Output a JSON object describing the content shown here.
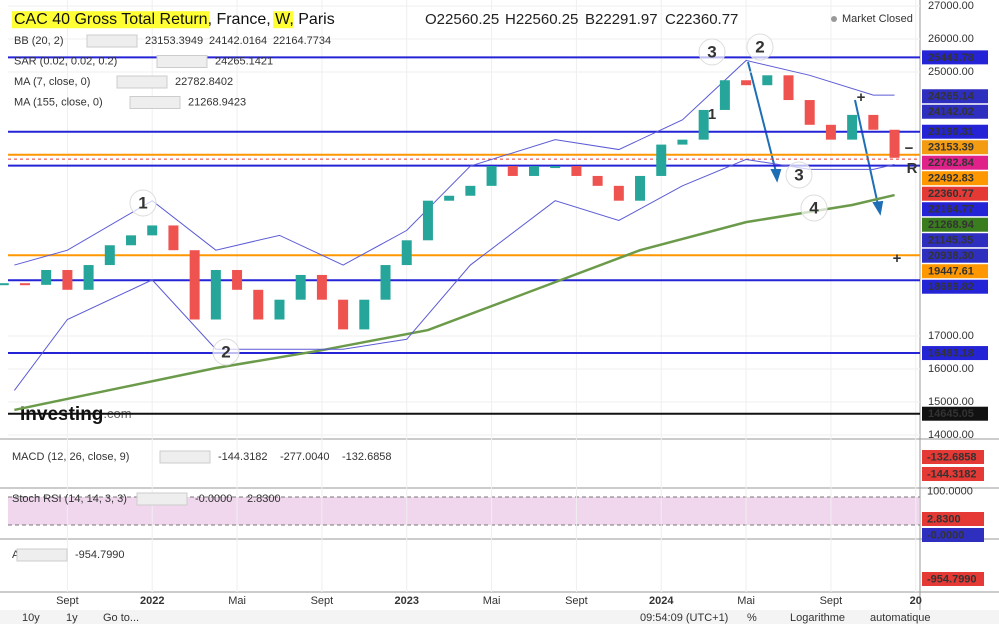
{
  "header": {
    "title_parts": [
      "CAC 40 Gross Total Return",
      ", France, ",
      "W",
      ", Paris"
    ],
    "ohlc": [
      "O22560.25",
      "H22560.25",
      "B22291.97",
      "C22360.77"
    ],
    "status": "Market Closed"
  },
  "indicators": [
    {
      "name": "BB (20, 2)",
      "values": [
        {
          "text": "23153.3949",
          "color": "#f39c12"
        },
        {
          "text": "24142.0164",
          "color": "#2f2fbf"
        },
        {
          "text": "22164.7734",
          "color": "#2f2fbf"
        }
      ]
    },
    {
      "name": "SAR (0.02, 0.02, 0.2)",
      "values": [
        {
          "text": "24265.1421",
          "color": "#2f2fbf"
        }
      ]
    },
    {
      "name": "MA (7, close, 0)",
      "values": [
        {
          "text": "22782.8402",
          "color": "#e0218a"
        }
      ]
    },
    {
      "name": "MA (155, close, 0)",
      "values": [
        {
          "text": "21268.9423",
          "color": "#3a7d1e"
        }
      ]
    }
  ],
  "chart_data": {
    "type": "candlestick",
    "xlim": [
      0.2,
      43.2
    ],
    "ylim": [
      14000,
      27000
    ],
    "xticks": [
      {
        "value": 3,
        "label": "Sept"
      },
      {
        "value": 7,
        "label": "2022"
      },
      {
        "value": 11,
        "label": "Mai"
      },
      {
        "value": 15,
        "label": "Sept"
      },
      {
        "value": 19,
        "label": "2023"
      },
      {
        "value": 23,
        "label": "Mai"
      },
      {
        "value": 27,
        "label": "Sept"
      },
      {
        "value": 31,
        "label": "2024"
      },
      {
        "value": 35,
        "label": "Mai"
      },
      {
        "value": 39,
        "label": "Sept"
      },
      {
        "value": 43,
        "label": "20"
      }
    ],
    "yticks": [
      {
        "value": 27000,
        "label": "27000.00"
      },
      {
        "value": 26000,
        "label": "26000.00"
      },
      {
        "value": 25000,
        "label": "25000.00"
      },
      {
        "value": 17000,
        "label": "17000.00"
      },
      {
        "value": 16000,
        "label": "16000.00"
      },
      {
        "value": 15000,
        "label": "15000.00"
      },
      {
        "value": 14000,
        "label": "14000.00"
      }
    ],
    "up_color": "#26a69a",
    "down_color": "#ef5350",
    "values": [
      18600,
      18550,
      19000,
      18400,
      19150,
      19750,
      20050,
      20350,
      19600,
      17500,
      19000,
      18400,
      17500,
      18100,
      18850,
      18100,
      17200,
      18100,
      19150,
      19900,
      21100,
      21250,
      21550,
      22150,
      21850,
      22150,
      22150,
      21850,
      21550,
      21100,
      21850,
      22800,
      22950,
      23850,
      24750,
      24600,
      24900,
      24150,
      23400,
      22950,
      23700,
      23250,
      22400
    ],
    "series": [
      {
        "name": "MA (155, close, 0)",
        "color": "#6b9b4a",
        "x": [
          0.5,
          10,
          15,
          20,
          25,
          30,
          35,
          40,
          42
        ],
        "values": [
          14760,
          16030,
          16570,
          17180,
          18390,
          19600,
          20450,
          20970,
          21270
        ]
      },
      {
        "name": "BB (20, 2)",
        "color": "#5b5bd6",
        "x": [
          0.5,
          3,
          7,
          10,
          13,
          16,
          19,
          22,
          26,
          29,
          32,
          35,
          38,
          41,
          42
        ],
        "values": [
          19150,
          19600,
          21100,
          19600,
          20050,
          19150,
          20200,
          22150,
          22950,
          22650,
          23550,
          25350,
          24900,
          24300,
          24300
        ]
      },
      {
        "name": "BB (20, 2)",
        "color": "#5b5bd6",
        "x": [
          0.5,
          3,
          7,
          10,
          13,
          16,
          19,
          22,
          26,
          29,
          32,
          35,
          38,
          41,
          42
        ],
        "values": [
          15350,
          17500,
          18700,
          16600,
          16600,
          16600,
          16900,
          19150,
          21100,
          20500,
          21550,
          22350,
          22050,
          22050,
          22200
        ]
      }
    ],
    "price_labels": [
      {
        "value": 25443.78,
        "label": "25443.78",
        "color": "#2424d6",
        "line": "solid"
      },
      {
        "value": 24265.14,
        "label": "24265.14",
        "color": "#2f2fbf"
      },
      {
        "value": 24142.02,
        "label": "24142.02",
        "color": "#2f2fbf"
      },
      {
        "value": 23190.31,
        "label": "23190.31",
        "color": "#2424d6",
        "line": "solid"
      },
      {
        "value": 23153.39,
        "label": "23153.39",
        "color": "#f39c12"
      },
      {
        "value": 22782.84,
        "label": "22782.84",
        "color": "#e0218a"
      },
      {
        "value": 22492.83,
        "label": "22492.83",
        "color": "#ff9800",
        "line": "solid"
      },
      {
        "value": 22360.77,
        "label": "22360.77",
        "color": "#e53935",
        "line": "dashed"
      },
      {
        "value": 22164.77,
        "label": "22164.77",
        "color": "#2424d6",
        "line": "solid"
      },
      {
        "value": 21268.94,
        "label": "21268.94",
        "color": "#3a7d1e"
      },
      {
        "value": 21145.35,
        "label": "21145.35",
        "color": "#2f2fbf"
      },
      {
        "value": 20938.3,
        "label": "20938.30",
        "color": "#2f2fbf"
      },
      {
        "value": 19447.61,
        "label": "19447.61",
        "color": "#ff9800",
        "line": "solid"
      },
      {
        "value": 18689.82,
        "label": "18689.82",
        "color": "#2424d6",
        "line": "solid"
      },
      {
        "value": 16483.18,
        "label": "16483.18",
        "color": "#2424d6",
        "line": "solid"
      },
      {
        "value": 14645.05,
        "label": "14645.05",
        "color": "#111111",
        "line": "solid"
      }
    ],
    "annotations": [
      {
        "text": "1",
        "color": "#e53935"
      },
      {
        "text": "2",
        "color": "#e53935"
      },
      {
        "text": "3",
        "color": "#e53935"
      },
      {
        "text": "2",
        "color": "#1f6fb5"
      },
      {
        "text": "3",
        "color": "#1f6fb5"
      },
      {
        "text": "4",
        "color": "#e53935"
      },
      {
        "text": "1",
        "color": "#1f6fb5"
      },
      {
        "text": "+",
        "color": "#1f6fb5"
      },
      {
        "text": "−",
        "color": "#e53935"
      },
      {
        "text": "R",
        "color": "#1f6fb5"
      },
      {
        "text": "+",
        "color": "#e53935"
      }
    ]
  },
  "panels": [
    {
      "name": "MACD (12, 26, close, 9)",
      "values": [
        {
          "text": "-144.3182",
          "color": "#e53935"
        },
        {
          "text": "-277.0040",
          "color": "#2f2fbf"
        },
        {
          "text": "-132.6858",
          "color": "#e53935"
        }
      ],
      "axis": [
        {
          "text": "-132.6858",
          "color": "#e53935"
        },
        {
          "text": "-144.3182",
          "color": "#e53935"
        }
      ]
    },
    {
      "name": "Stoch RSI (14, 14, 3, 3)",
      "values": [
        {
          "text": "-0.0000",
          "color": "#2f2fbf"
        },
        {
          "text": "2.8300",
          "color": "#e53935"
        }
      ],
      "axis": [
        {
          "text": "100.0000",
          "color": ""
        },
        {
          "text": "2.8300",
          "color": "#e53935"
        },
        {
          "text": "-0.0000",
          "color": "#2f2fbf"
        }
      ]
    },
    {
      "name": "AO",
      "values": [
        {
          "text": "-954.7990",
          "color": "#e53935"
        }
      ],
      "axis": [
        {
          "text": "-954.7990",
          "color": "#e53935"
        }
      ]
    }
  ],
  "logo": [
    "Investing",
    ".com"
  ],
  "toolbar": {
    "left": [
      "10y",
      "1y",
      "Go to..."
    ],
    "right": [
      "09:54:09 (UTC+1)",
      "%",
      "Logarithme",
      "automatique"
    ]
  }
}
